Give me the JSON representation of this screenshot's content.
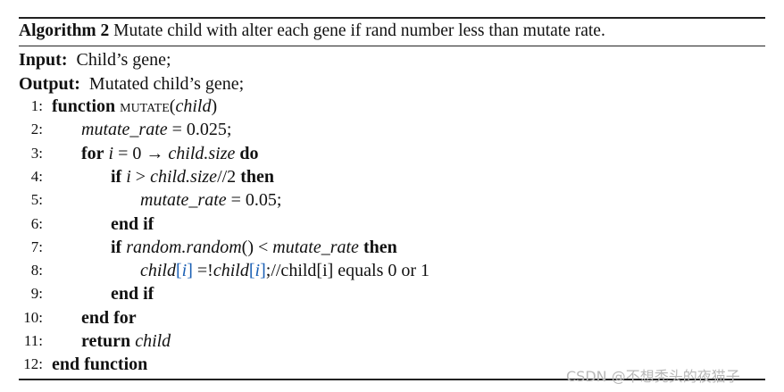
{
  "caption": {
    "label": "Algorithm 2",
    "text": " Mutate child with alter each gene if rand number less than mutate rate."
  },
  "input": {
    "label": "Input:",
    "text": "  Child’s gene;"
  },
  "output": {
    "label": "Output:",
    "text": "  Mutated child’s gene;"
  },
  "lines": [
    {
      "num": "1:",
      "indent": 0,
      "segs": [
        [
          "b",
          "function"
        ],
        [
          "r",
          " "
        ],
        [
          "sc",
          "mutate"
        ],
        [
          "r",
          "("
        ],
        [
          "i",
          "child"
        ],
        [
          "r",
          ")"
        ]
      ]
    },
    {
      "num": "2:",
      "indent": 1,
      "segs": [
        [
          "i",
          "mutate_rate"
        ],
        [
          "r",
          " = 0.025;"
        ]
      ]
    },
    {
      "num": "3:",
      "indent": 1,
      "segs": [
        [
          "b",
          "for"
        ],
        [
          "r",
          " "
        ],
        [
          "i",
          "i"
        ],
        [
          "r",
          " = 0 → "
        ],
        [
          "i",
          "child.size"
        ],
        [
          "r",
          " "
        ],
        [
          "b",
          "do"
        ]
      ]
    },
    {
      "num": "4:",
      "indent": 2,
      "segs": [
        [
          "b",
          "if"
        ],
        [
          "r",
          " "
        ],
        [
          "i",
          "i"
        ],
        [
          "r",
          " > "
        ],
        [
          "i",
          "child.size"
        ],
        [
          "r",
          "//2 "
        ],
        [
          "b",
          "then"
        ]
      ]
    },
    {
      "num": "5:",
      "indent": 3,
      "segs": [
        [
          "i",
          "mutate_rate"
        ],
        [
          "r",
          " = 0.05;"
        ]
      ]
    },
    {
      "num": "6:",
      "indent": 2,
      "segs": [
        [
          "b",
          "end if"
        ]
      ]
    },
    {
      "num": "7:",
      "indent": 2,
      "segs": [
        [
          "b",
          "if"
        ],
        [
          "r",
          " "
        ],
        [
          "i",
          "random.random"
        ],
        [
          "r",
          "() < "
        ],
        [
          "i",
          "mutate_rate"
        ],
        [
          "r",
          " "
        ],
        [
          "b",
          "then"
        ]
      ]
    },
    {
      "num": "8:",
      "indent": 3,
      "segs": [
        [
          "i",
          "child"
        ],
        [
          "blue",
          "["
        ],
        [
          "i blue",
          "i"
        ],
        [
          "blue",
          "]"
        ],
        [
          "r",
          " =!"
        ],
        [
          "i",
          "child"
        ],
        [
          "blue",
          "["
        ],
        [
          "i blue",
          "i"
        ],
        [
          "blue",
          "]"
        ],
        [
          "r",
          ";//child[i] equals 0 or 1"
        ]
      ]
    },
    {
      "num": "9:",
      "indent": 2,
      "segs": [
        [
          "b",
          "end if"
        ]
      ]
    },
    {
      "num": "10:",
      "indent": 1,
      "segs": [
        [
          "b",
          "end for"
        ]
      ]
    },
    {
      "num": "11:",
      "indent": 1,
      "segs": [
        [
          "b",
          "return"
        ],
        [
          "r",
          " "
        ],
        [
          "i",
          "child"
        ]
      ]
    },
    {
      "num": "12:",
      "indent": 0,
      "segs": [
        [
          "b",
          "end function"
        ]
      ]
    }
  ],
  "watermark": "CSDN @不想秃头的夜猫子",
  "colors": {
    "index_bracket": "#1a5fb4"
  }
}
